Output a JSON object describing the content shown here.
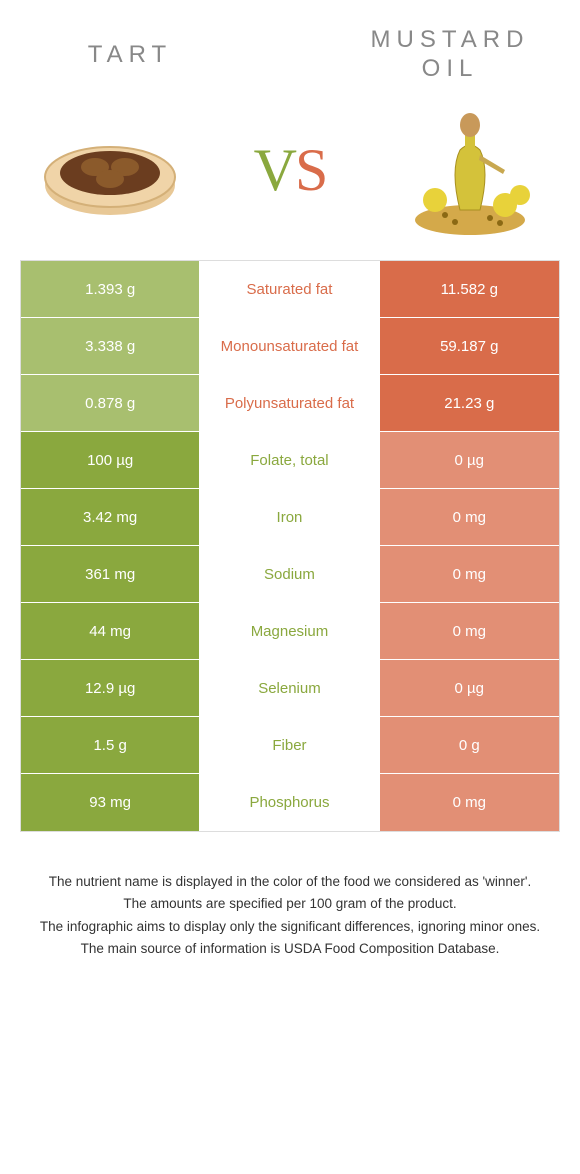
{
  "colors": {
    "green_winner": "#8aa83e",
    "green_loser": "#a8bf6f",
    "orange_winner": "#d96c4a",
    "orange_loser": "#e28f75",
    "mid_green_text": "#8aa83e",
    "mid_orange_text": "#d96c4a"
  },
  "header": {
    "left_title": "TART",
    "right_title": "MUSTARD OIL",
    "vs_v": "V",
    "vs_s": "S"
  },
  "rows": [
    {
      "left": "1.393 g",
      "mid": "Saturated fat",
      "right": "11.582 g",
      "winner": "right"
    },
    {
      "left": "3.338 g",
      "mid": "Monounsaturated fat",
      "right": "59.187 g",
      "winner": "right"
    },
    {
      "left": "0.878 g",
      "mid": "Polyunsaturated fat",
      "right": "21.23 g",
      "winner": "right"
    },
    {
      "left": "100 µg",
      "mid": "Folate, total",
      "right": "0 µg",
      "winner": "left"
    },
    {
      "left": "3.42 mg",
      "mid": "Iron",
      "right": "0 mg",
      "winner": "left"
    },
    {
      "left": "361 mg",
      "mid": "Sodium",
      "right": "0 mg",
      "winner": "left"
    },
    {
      "left": "44 mg",
      "mid": "Magnesium",
      "right": "0 mg",
      "winner": "left"
    },
    {
      "left": "12.9 µg",
      "mid": "Selenium",
      "right": "0 µg",
      "winner": "left"
    },
    {
      "left": "1.5 g",
      "mid": "Fiber",
      "right": "0 g",
      "winner": "left"
    },
    {
      "left": "93 mg",
      "mid": "Phosphorus",
      "right": "0 mg",
      "winner": "left"
    }
  ],
  "footer": [
    "The nutrient name is displayed in the color of the food we considered as 'winner'.",
    "The amounts are specified per 100 gram of the product.",
    "The infographic aims to display only the significant differences, ignoring minor ones.",
    "The main source of information is USDA Food Composition Database."
  ]
}
